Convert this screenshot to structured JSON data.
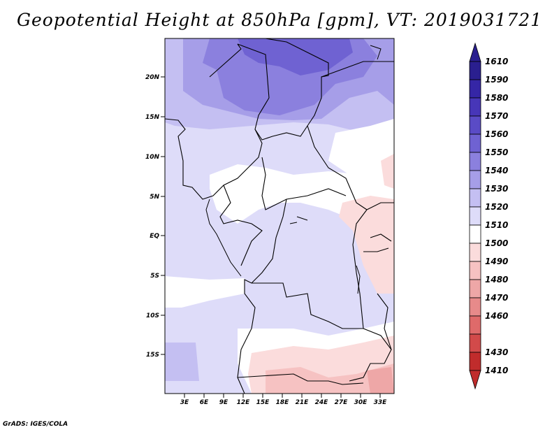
{
  "title": "Geopotential Height at 850hPa [gpm], VT: 2019031721",
  "footer": "GrADS: IGES/COLA",
  "map": {
    "lat_ticks": [
      "20N",
      "15N",
      "10N",
      "5N",
      "EQ",
      "5S",
      "10S",
      "15S"
    ],
    "lon_ticks": [
      "3E",
      "6E",
      "9E",
      "12E",
      "15E",
      "18E",
      "21E",
      "24E",
      "27E",
      "30E",
      "33E"
    ]
  },
  "colorbar": {
    "labels": [
      "1610",
      "1590",
      "1580",
      "1570",
      "1560",
      "1550",
      "1540",
      "1530",
      "1520",
      "1510",
      "1500",
      "1490",
      "1480",
      "1470",
      "1460",
      "1430",
      "1410"
    ],
    "colors": {
      "c1600": "#2a1f8f",
      "c1590": "#3526a6",
      "c1580": "#4736b8",
      "c1570": "#5a4bc6",
      "c1560": "#6f62d2",
      "c1550": "#8b80de",
      "c1540": "#a69ee8",
      "c1530": "#c4bff2",
      "c1520": "#dedcf9",
      "c1510": "#ffffff",
      "c1500": "#fbdcdc",
      "c1490": "#f6c2c2",
      "c1480": "#eea7a7",
      "c1470": "#e78a8a",
      "c1460": "#df6a6a",
      "c1430": "#d24a4a",
      "c1410": "#c02c2c"
    }
  }
}
